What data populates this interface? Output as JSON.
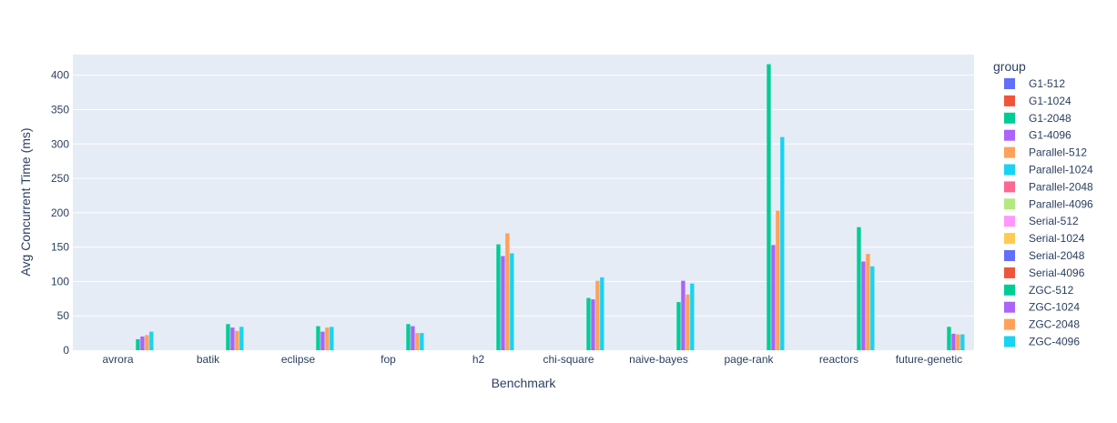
{
  "chart_data": {
    "type": "bar",
    "title": "",
    "xlabel": "Benchmark",
    "ylabel": "Avg Concurrent Time (ms)",
    "ylim": [
      0,
      430
    ],
    "yticks": [
      0,
      50,
      100,
      150,
      200,
      250,
      300,
      350,
      400
    ],
    "grid": true,
    "legend_title": "group",
    "legend_position": "right",
    "categories": [
      "avrora",
      "batik",
      "eclipse",
      "fop",
      "h2",
      "chi-square",
      "naive-bayes",
      "page-rank",
      "reactors",
      "future-genetic"
    ],
    "series": [
      {
        "name": "G1-512",
        "color": "#636efa",
        "values": [
          null,
          null,
          null,
          null,
          null,
          null,
          null,
          null,
          null,
          null
        ]
      },
      {
        "name": "G1-1024",
        "color": "#EF553B",
        "values": [
          null,
          null,
          null,
          null,
          null,
          null,
          null,
          null,
          null,
          null
        ]
      },
      {
        "name": "G1-2048",
        "color": "#00cc96",
        "values": [
          null,
          null,
          null,
          null,
          null,
          null,
          null,
          null,
          null,
          null
        ]
      },
      {
        "name": "G1-4096",
        "color": "#ab63fa",
        "values": [
          null,
          null,
          null,
          null,
          null,
          null,
          null,
          null,
          null,
          null
        ]
      },
      {
        "name": "Parallel-512",
        "color": "#FFA15A",
        "values": [
          null,
          null,
          null,
          null,
          null,
          null,
          null,
          null,
          null,
          null
        ]
      },
      {
        "name": "Parallel-1024",
        "color": "#19d3f3",
        "values": [
          null,
          null,
          null,
          null,
          null,
          null,
          null,
          null,
          null,
          null
        ]
      },
      {
        "name": "Parallel-2048",
        "color": "#FF6692",
        "values": [
          null,
          null,
          null,
          null,
          null,
          null,
          null,
          null,
          null,
          null
        ]
      },
      {
        "name": "Parallel-4096",
        "color": "#B6E880",
        "values": [
          null,
          null,
          null,
          null,
          null,
          null,
          null,
          null,
          null,
          null
        ]
      },
      {
        "name": "Serial-512",
        "color": "#FF97FF",
        "values": [
          null,
          null,
          null,
          null,
          null,
          null,
          null,
          null,
          null,
          null
        ]
      },
      {
        "name": "Serial-1024",
        "color": "#FECB52",
        "values": [
          null,
          null,
          null,
          null,
          null,
          null,
          null,
          null,
          null,
          null
        ]
      },
      {
        "name": "Serial-2048",
        "color": "#636efa",
        "values": [
          null,
          null,
          null,
          null,
          null,
          null,
          null,
          null,
          null,
          null
        ]
      },
      {
        "name": "Serial-4096",
        "color": "#EF553B",
        "values": [
          null,
          null,
          null,
          null,
          null,
          null,
          null,
          null,
          null,
          null
        ]
      },
      {
        "name": "ZGC-512",
        "color": "#00cc96",
        "values": [
          16,
          38,
          35,
          38,
          154,
          76,
          70,
          416,
          179,
          34
        ]
      },
      {
        "name": "ZGC-1024",
        "color": "#ab63fa",
        "values": [
          20,
          33,
          27,
          35,
          137,
          74,
          101,
          153,
          129,
          24
        ]
      },
      {
        "name": "ZGC-2048",
        "color": "#FFA15A",
        "values": [
          22,
          28,
          33,
          25,
          170,
          101,
          81,
          203,
          140,
          23
        ]
      },
      {
        "name": "ZGC-4096",
        "color": "#19d3f3",
        "values": [
          27,
          34,
          34,
          25,
          141,
          106,
          97,
          310,
          122,
          23
        ]
      }
    ]
  }
}
